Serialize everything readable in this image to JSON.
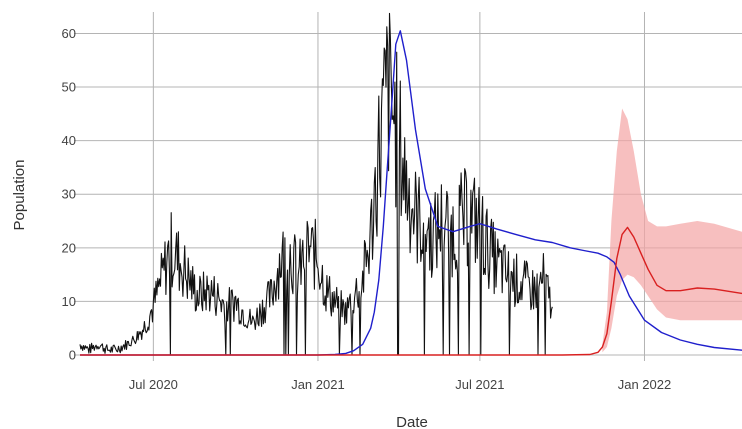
{
  "chart_data": {
    "type": "line",
    "title": "",
    "xlabel": "Date",
    "ylabel": "Population",
    "xlim": [
      "2020-04-10",
      "2022-04-20"
    ],
    "ylim": [
      0,
      64
    ],
    "grid": true,
    "legend": "none",
    "x_ticks": [
      {
        "date": "2020-07-01",
        "label": "Jul 2020"
      },
      {
        "date": "2021-01-01",
        "label": "Jan 2021"
      },
      {
        "date": "2021-07-01",
        "label": "Jul 2021"
      },
      {
        "date": "2022-01-01",
        "label": "Jan 2022"
      }
    ],
    "y_ticks": [
      0,
      10,
      20,
      30,
      40,
      50,
      60
    ],
    "colors": {
      "observed": "#111111",
      "fit": "#1f1fcc",
      "forecast": "#d92020",
      "band": "#f4a4a4"
    },
    "series": [
      {
        "key": "observed",
        "x": [
          "2020-04-10",
          "2020-04-20",
          "2020-05-01",
          "2020-05-10",
          "2020-05-20",
          "2020-06-01",
          "2020-06-10",
          "2020-06-20",
          "2020-07-01",
          "2020-07-10",
          "2020-07-20",
          "2020-08-01",
          "2020-08-10",
          "2020-08-20",
          "2020-09-01",
          "2020-09-10",
          "2020-09-20",
          "2020-10-01",
          "2020-10-10",
          "2020-10-20",
          "2020-11-01",
          "2020-11-10",
          "2020-11-20",
          "2020-12-01",
          "2020-12-10",
          "2020-12-20",
          "2021-01-01",
          "2021-01-10",
          "2021-01-20",
          "2021-02-01",
          "2021-02-10",
          "2021-02-20",
          "2021-03-01",
          "2021-03-10",
          "2021-03-20",
          "2021-04-01",
          "2021-04-10",
          "2021-04-20",
          "2021-05-01",
          "2021-05-10",
          "2021-05-20",
          "2021-06-01",
          "2021-06-10",
          "2021-06-20",
          "2021-07-01",
          "2021-07-10",
          "2021-07-20",
          "2021-08-01",
          "2021-08-10",
          "2021-08-20",
          "2021-09-01",
          "2021-09-10",
          "2021-09-20"
        ],
        "y": [
          2,
          1,
          2,
          1,
          1,
          2,
          3,
          5,
          9,
          14,
          20,
          17,
          14,
          11,
          12,
          11,
          9,
          10,
          8,
          6,
          9,
          11,
          18,
          19,
          15,
          20,
          18,
          12,
          10,
          8,
          11,
          14,
          22,
          38,
          50,
          40,
          32,
          26,
          24,
          22,
          25,
          23,
          25,
          26,
          24,
          20,
          17,
          15,
          14,
          13,
          12,
          14,
          9
        ]
      },
      {
        "key": "fit",
        "x": [
          "2020-04-10",
          "2020-12-01",
          "2021-01-01",
          "2021-01-20",
          "2021-02-01",
          "2021-02-10",
          "2021-02-20",
          "2021-03-01",
          "2021-03-05",
          "2021-03-10",
          "2021-03-15",
          "2021-03-20",
          "2021-03-25",
          "2021-03-29",
          "2021-04-03",
          "2021-04-10",
          "2021-04-20",
          "2021-05-01",
          "2021-05-15",
          "2021-06-01",
          "2021-06-20",
          "2021-07-01",
          "2021-07-20",
          "2021-08-10",
          "2021-09-01",
          "2021-09-20",
          "2021-10-10",
          "2021-10-25",
          "2021-11-10",
          "2021-11-20",
          "2021-11-28",
          "2021-12-05",
          "2021-12-15",
          "2022-01-01",
          "2022-01-20",
          "2022-02-10",
          "2022-03-01",
          "2022-03-20",
          "2022-04-20"
        ],
        "y": [
          0,
          0,
          0,
          0.1,
          0.3,
          0.8,
          2,
          5,
          8,
          14,
          24,
          36,
          48,
          58,
          60.5,
          55,
          42,
          31,
          24,
          23,
          24,
          24.5,
          23.5,
          22.5,
          21.5,
          21,
          20,
          19.5,
          19,
          18.3,
          17.3,
          15,
          11,
          6.5,
          4.2,
          2.8,
          2,
          1.4,
          0.9
        ]
      },
      {
        "key": "forecast",
        "x": [
          "2020-04-10",
          "2021-10-01",
          "2021-11-01",
          "2021-11-10",
          "2021-11-15",
          "2021-11-20",
          "2021-11-25",
          "2021-12-01",
          "2021-12-07",
          "2021-12-13",
          "2021-12-20",
          "2021-12-28",
          "2022-01-05",
          "2022-01-15",
          "2022-01-25",
          "2022-02-10",
          "2022-03-01",
          "2022-03-20",
          "2022-04-20"
        ],
        "y": [
          0,
          0,
          0.1,
          0.5,
          1.5,
          4,
          10,
          18,
          22.5,
          23.8,
          22,
          19,
          16,
          13,
          12,
          12,
          12.5,
          12.3,
          11.5
        ]
      }
    ],
    "band": {
      "key": "band",
      "x": [
        "2021-11-15",
        "2021-11-20",
        "2021-11-25",
        "2021-12-01",
        "2021-12-07",
        "2021-12-13",
        "2021-12-20",
        "2021-12-28",
        "2022-01-05",
        "2022-01-15",
        "2022-01-25",
        "2022-02-10",
        "2022-03-01",
        "2022-03-20",
        "2022-04-20"
      ],
      "upper": [
        2,
        8,
        25,
        38,
        46,
        44,
        38,
        30,
        25,
        24,
        24,
        24.5,
        25,
        24.5,
        23
      ],
      "lower": [
        0.5,
        1.5,
        5,
        11,
        14,
        15,
        14.5,
        13,
        11,
        8.5,
        7,
        6.5,
        6.5,
        6.5,
        6.5
      ]
    }
  }
}
